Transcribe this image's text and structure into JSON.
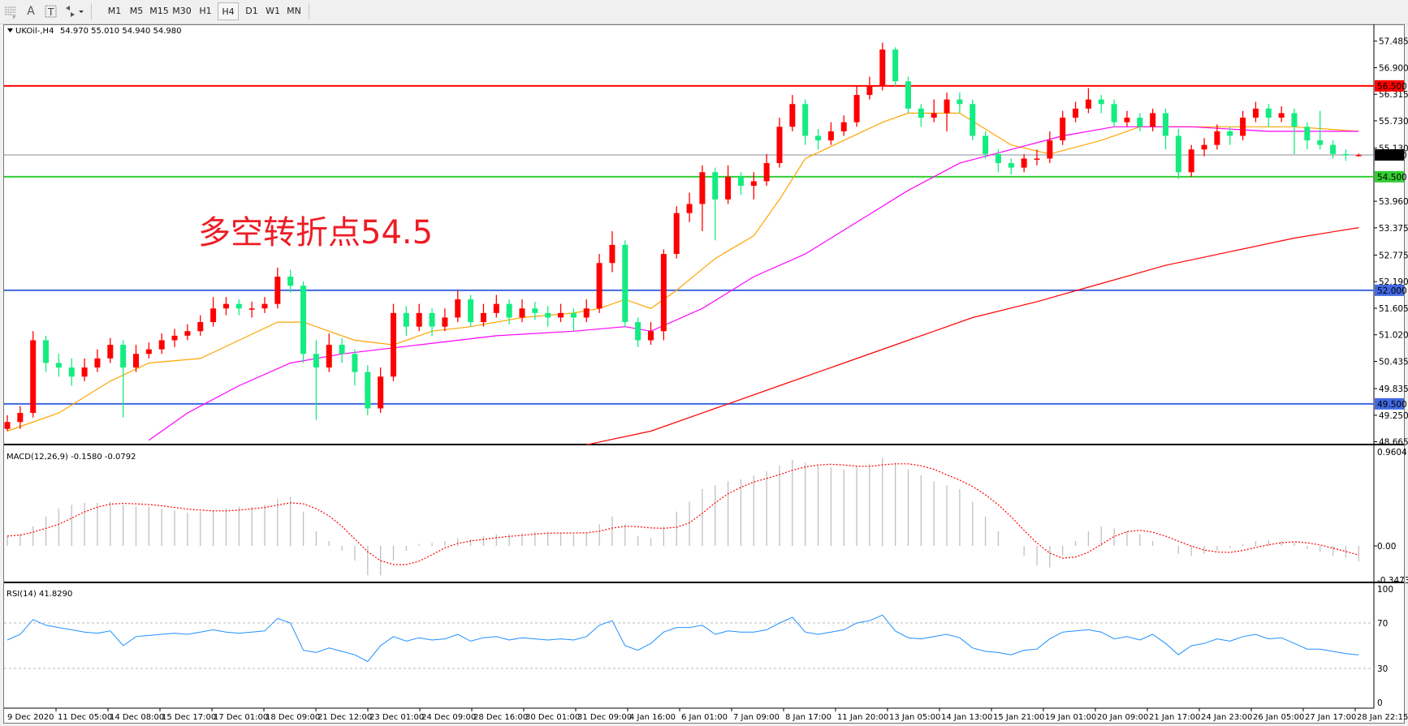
{
  "toolbar": {
    "icons": [
      "grid-f-icon",
      "text-a-icon",
      "text-label-icon",
      "arrows-icon"
    ],
    "timeframes": [
      "M1",
      "M5",
      "M15",
      "M30",
      "H1",
      "H4",
      "D1",
      "W1",
      "MN"
    ],
    "selected_timeframe": "H4"
  },
  "chart_header": {
    "symbol": "UKOil-,H4",
    "ohlc": "54.970 55.010 54.940 54.980"
  },
  "annotation": "多空转折点54.5",
  "macd": {
    "label": "MACD(12,26,9) -0.1580 -0.0792",
    "axis_labels": [
      "0.9604",
      "0.00",
      "-0.3473"
    ]
  },
  "rsi": {
    "label": "RSI(14) 41.8290",
    "axis_labels": [
      "100",
      "70",
      "30",
      "0"
    ],
    "levels": [
      70,
      30
    ]
  },
  "colors": {
    "bull": "#ff0000",
    "bear": "#14ec82",
    "ma_fast": "#ffa500",
    "ma_mid": "#ff00ff",
    "ma_slow": "#ff0000",
    "macd_hist": "#c0c0c0",
    "macd_signal": "#ff0000",
    "rsi": "#1e90ff"
  },
  "chart_data": [
    {
      "type": "candlestick",
      "title": "UKOil-,H4",
      "ylim": [
        48.665,
        57.485
      ],
      "y_tick_labels": [
        "57.485",
        "56.900",
        "56.315",
        "55.730",
        "55.130",
        "53.960",
        "53.375",
        "52.775",
        "52.190",
        "51.605",
        "51.020",
        "50.435",
        "49.835",
        "49.250",
        "48.665"
      ],
      "x_tick_labels": [
        "9 Dec 2020",
        "11 Dec 05:00",
        "14 Dec 08:00",
        "15 Dec 17:00",
        "17 Dec 01:00",
        "18 Dec 09:00",
        "21 Dec 12:00",
        "23 Dec 01:00",
        "24 Dec 09:00",
        "28 Dec 16:00",
        "30 Dec 01:00",
        "31 Dec 09:00",
        "4 Jan 16:00",
        "6 Jan 01:00",
        "7 Jan 09:00",
        "8 Jan 17:00",
        "11 Jan 20:00",
        "13 Jan 05:00",
        "14 Jan 13:00",
        "15 Jan 21:00",
        "19 Jan 01:00",
        "20 Jan 09:00",
        "21 Jan 17:00",
        "24 Jan 23:00",
        "26 Jan 05:00",
        "27 Jan 17:00",
        "28 Jan 22:15"
      ],
      "horizontal_lines": [
        {
          "price": 56.5,
          "label": "56.500",
          "color": "#ff0000"
        },
        {
          "price": 54.98,
          "label": "54.980",
          "color": "#000000",
          "line_color": "#8a8f96"
        },
        {
          "price": 54.5,
          "label": "54.500",
          "color": "#32cd32"
        },
        {
          "price": 52.0,
          "label": "52.000",
          "color": "#4169e1"
        },
        {
          "price": 49.5,
          "label": "49.500",
          "color": "#4169e1"
        }
      ],
      "candles_ohlc": [
        [
          48.95,
          49.25,
          48.9,
          49.1
        ],
        [
          49.1,
          49.45,
          48.95,
          49.3
        ],
        [
          49.3,
          51.1,
          49.2,
          50.9
        ],
        [
          50.9,
          51.0,
          50.2,
          50.4
        ],
        [
          50.4,
          50.6,
          50.1,
          50.3
        ],
        [
          50.3,
          50.5,
          49.9,
          50.1
        ],
        [
          50.1,
          50.5,
          50.0,
          50.3
        ],
        [
          50.3,
          50.7,
          50.2,
          50.5
        ],
        [
          50.5,
          50.95,
          50.4,
          50.8
        ],
        [
          50.8,
          50.9,
          49.2,
          50.3
        ],
        [
          50.3,
          50.8,
          50.2,
          50.6
        ],
        [
          50.6,
          50.85,
          50.5,
          50.7
        ],
        [
          50.7,
          51.05,
          50.6,
          50.9
        ],
        [
          50.9,
          51.15,
          50.75,
          51.0
        ],
        [
          51.0,
          51.25,
          50.9,
          51.1
        ],
        [
          51.1,
          51.45,
          51.0,
          51.3
        ],
        [
          51.3,
          51.85,
          51.2,
          51.6
        ],
        [
          51.6,
          51.85,
          51.45,
          51.7
        ],
        [
          51.7,
          51.8,
          51.45,
          51.6
        ],
        [
          51.6,
          51.75,
          51.4,
          51.6
        ],
        [
          51.6,
          51.85,
          51.5,
          51.7
        ],
        [
          51.7,
          52.5,
          51.6,
          52.3
        ],
        [
          52.3,
          52.45,
          51.95,
          52.1
        ],
        [
          52.1,
          52.2,
          50.4,
          50.6
        ],
        [
          50.6,
          50.9,
          49.15,
          50.3
        ],
        [
          50.3,
          51.05,
          50.2,
          50.8
        ],
        [
          50.8,
          50.95,
          50.4,
          50.6
        ],
        [
          50.6,
          50.7,
          49.9,
          50.2
        ],
        [
          50.2,
          50.35,
          49.25,
          49.4
        ],
        [
          49.4,
          50.3,
          49.3,
          50.1
        ],
        [
          50.1,
          51.7,
          50.0,
          51.5
        ],
        [
          51.5,
          51.65,
          51.0,
          51.2
        ],
        [
          51.2,
          51.7,
          51.1,
          51.5
        ],
        [
          51.5,
          51.6,
          51.0,
          51.2
        ],
        [
          51.2,
          51.6,
          51.1,
          51.4
        ],
        [
          51.4,
          52.0,
          51.3,
          51.8
        ],
        [
          51.8,
          51.9,
          51.2,
          51.3
        ],
        [
          51.3,
          51.7,
          51.2,
          51.5
        ],
        [
          51.5,
          51.9,
          51.4,
          51.7
        ],
        [
          51.7,
          51.8,
          51.25,
          51.4
        ],
        [
          51.4,
          51.8,
          51.3,
          51.6
        ],
        [
          51.6,
          51.75,
          51.35,
          51.5
        ],
        [
          51.5,
          51.65,
          51.2,
          51.4
        ],
        [
          51.4,
          51.7,
          51.3,
          51.5
        ],
        [
          51.5,
          51.6,
          51.1,
          51.4
        ],
        [
          51.4,
          51.8,
          51.3,
          51.6
        ],
        [
          51.6,
          52.8,
          51.5,
          52.6
        ],
        [
          52.6,
          53.3,
          52.4,
          53.0
        ],
        [
          53.0,
          53.1,
          51.2,
          51.3
        ],
        [
          51.3,
          51.4,
          50.75,
          50.9
        ],
        [
          50.9,
          51.3,
          50.8,
          51.1
        ],
        [
          51.1,
          52.9,
          50.9,
          52.8
        ],
        [
          52.8,
          53.85,
          52.7,
          53.7
        ],
        [
          53.7,
          54.15,
          53.5,
          53.9
        ],
        [
          53.9,
          54.75,
          53.3,
          54.6
        ],
        [
          54.6,
          54.7,
          53.1,
          54.0
        ],
        [
          54.0,
          54.75,
          53.9,
          54.5
        ],
        [
          54.5,
          54.6,
          54.1,
          54.3
        ],
        [
          54.3,
          54.6,
          54.0,
          54.4
        ],
        [
          54.4,
          55.0,
          54.3,
          54.8
        ],
        [
          54.8,
          55.8,
          54.7,
          55.6
        ],
        [
          55.6,
          56.3,
          55.5,
          56.1
        ],
        [
          56.1,
          56.2,
          55.2,
          55.4
        ],
        [
          55.4,
          55.55,
          55.1,
          55.3
        ],
        [
          55.3,
          55.7,
          55.2,
          55.5
        ],
        [
          55.5,
          55.85,
          55.4,
          55.7
        ],
        [
          55.7,
          56.5,
          55.6,
          56.3
        ],
        [
          56.3,
          56.7,
          56.2,
          56.5
        ],
        [
          56.5,
          57.45,
          56.4,
          57.3
        ],
        [
          57.3,
          57.35,
          56.5,
          56.6
        ],
        [
          56.6,
          56.7,
          55.9,
          56.0
        ],
        [
          56.0,
          56.1,
          55.6,
          55.8
        ],
        [
          55.8,
          56.2,
          55.7,
          55.9
        ],
        [
          55.9,
          56.35,
          55.5,
          56.2
        ],
        [
          56.2,
          56.35,
          55.9,
          56.1
        ],
        [
          56.1,
          56.2,
          55.3,
          55.4
        ],
        [
          55.4,
          55.5,
          54.9,
          55.0
        ],
        [
          55.0,
          55.1,
          54.6,
          54.8
        ],
        [
          54.8,
          54.9,
          54.55,
          54.7
        ],
        [
          54.7,
          55.0,
          54.6,
          54.9
        ],
        [
          54.9,
          55.1,
          54.75,
          54.9
        ],
        [
          54.9,
          55.5,
          54.8,
          55.3
        ],
        [
          55.3,
          55.95,
          55.2,
          55.8
        ],
        [
          55.8,
          56.15,
          55.7,
          56.0
        ],
        [
          56.0,
          56.45,
          55.9,
          56.2
        ],
        [
          56.2,
          56.3,
          55.9,
          56.1
        ],
        [
          56.1,
          56.2,
          55.6,
          55.7
        ],
        [
          55.7,
          55.95,
          55.6,
          55.8
        ],
        [
          55.8,
          55.9,
          55.5,
          55.6
        ],
        [
          55.6,
          56.0,
          55.5,
          55.9
        ],
        [
          55.9,
          56.0,
          55.1,
          55.4
        ],
        [
          55.4,
          55.55,
          54.45,
          54.6
        ],
        [
          54.6,
          55.2,
          54.5,
          55.1
        ],
        [
          55.1,
          55.35,
          54.95,
          55.2
        ],
        [
          55.2,
          55.65,
          55.1,
          55.5
        ],
        [
          55.5,
          55.6,
          55.2,
          55.4
        ],
        [
          55.4,
          55.95,
          55.3,
          55.8
        ],
        [
          55.8,
          56.15,
          55.7,
          56.0
        ],
        [
          56.0,
          56.1,
          55.6,
          55.8
        ],
        [
          55.8,
          56.05,
          55.7,
          55.9
        ],
        [
          55.9,
          56.0,
          55.0,
          55.6
        ],
        [
          55.6,
          55.7,
          55.1,
          55.3
        ],
        [
          55.3,
          55.95,
          55.1,
          55.2
        ],
        [
          55.2,
          55.3,
          54.9,
          55.0
        ],
        [
          55.0,
          55.1,
          54.85,
          54.97
        ],
        [
          54.97,
          55.01,
          54.94,
          54.98
        ]
      ],
      "moving_averages": [
        {
          "color": "#ffa500",
          "points": [
            [
              0,
              48.9
            ],
            [
              4,
              49.3
            ],
            [
              8,
              50.0
            ],
            [
              11,
              50.4
            ],
            [
              15,
              50.5
            ],
            [
              18,
              50.9
            ],
            [
              21,
              51.3
            ],
            [
              23,
              51.3
            ],
            [
              27,
              50.9
            ],
            [
              30,
              50.8
            ],
            [
              33,
              51.1
            ],
            [
              36,
              51.2
            ],
            [
              40,
              51.4
            ],
            [
              44,
              51.5
            ],
            [
              46,
              51.6
            ],
            [
              48,
              51.8
            ],
            [
              50,
              51.6
            ],
            [
              52,
              52.0
            ],
            [
              55,
              52.7
            ],
            [
              58,
              53.2
            ],
            [
              60,
              54.0
            ],
            [
              62,
              54.9
            ],
            [
              65,
              55.3
            ],
            [
              68,
              55.7
            ],
            [
              70,
              55.9
            ],
            [
              74,
              55.9
            ],
            [
              78,
              55.2
            ],
            [
              81,
              55.0
            ],
            [
              85,
              55.3
            ],
            [
              88,
              55.6
            ],
            [
              93,
              55.6
            ],
            [
              96,
              55.6
            ],
            [
              100,
              55.6
            ],
            [
              105,
              55.5
            ]
          ]
        },
        {
          "color": "#ff00ff",
          "points": [
            [
              11,
              48.7
            ],
            [
              14,
              49.3
            ],
            [
              18,
              49.9
            ],
            [
              22,
              50.4
            ],
            [
              26,
              50.6
            ],
            [
              32,
              50.8
            ],
            [
              38,
              51.0
            ],
            [
              44,
              51.1
            ],
            [
              48,
              51.2
            ],
            [
              50,
              51.1
            ],
            [
              54,
              51.6
            ],
            [
              58,
              52.3
            ],
            [
              62,
              52.8
            ],
            [
              66,
              53.5
            ],
            [
              70,
              54.2
            ],
            [
              74,
              54.8
            ],
            [
              78,
              55.1
            ],
            [
              82,
              55.4
            ],
            [
              86,
              55.6
            ],
            [
              92,
              55.6
            ],
            [
              98,
              55.5
            ],
            [
              105,
              55.5
            ]
          ]
        },
        {
          "color": "#ff0000",
          "points": [
            [
              45,
              48.6
            ],
            [
              50,
              48.9
            ],
            [
              55,
              49.4
            ],
            [
              60,
              49.9
            ],
            [
              65,
              50.4
            ],
            [
              70,
              50.9
            ],
            [
              75,
              51.4
            ],
            [
              80,
              51.75
            ],
            [
              85,
              52.15
            ],
            [
              90,
              52.55
            ],
            [
              95,
              52.85
            ],
            [
              100,
              53.15
            ],
            [
              105,
              53.38
            ]
          ]
        }
      ]
    },
    {
      "type": "bar",
      "title": "MACD(12,26,9)",
      "ylim": [
        -0.3473,
        0.9604
      ],
      "values": [
        0.1,
        0.12,
        0.2,
        0.3,
        0.38,
        0.42,
        0.44,
        0.44,
        0.45,
        0.42,
        0.4,
        0.4,
        0.38,
        0.36,
        0.34,
        0.35,
        0.36,
        0.38,
        0.4,
        0.4,
        0.42,
        0.48,
        0.5,
        0.35,
        0.15,
        0.05,
        -0.05,
        -0.15,
        -0.3,
        -0.3,
        -0.15,
        -0.05,
        0.02,
        0.03,
        0.05,
        0.08,
        0.07,
        0.1,
        0.12,
        0.12,
        0.13,
        0.14,
        0.14,
        0.13,
        0.12,
        0.14,
        0.22,
        0.3,
        0.22,
        0.1,
        0.08,
        0.2,
        0.35,
        0.45,
        0.58,
        0.62,
        0.66,
        0.68,
        0.72,
        0.76,
        0.82,
        0.88,
        0.85,
        0.82,
        0.8,
        0.78,
        0.82,
        0.84,
        0.9,
        0.85,
        0.78,
        0.72,
        0.66,
        0.62,
        0.58,
        0.45,
        0.3,
        0.15,
        0.0,
        -0.1,
        -0.2,
        -0.22,
        -0.1,
        0.05,
        0.15,
        0.2,
        0.18,
        0.15,
        0.12,
        0.05,
        0.0,
        -0.08,
        -0.1,
        -0.08,
        -0.05,
        -0.02,
        0.02,
        0.05,
        0.06,
        0.05,
        0.03,
        -0.03,
        -0.06,
        -0.1,
        -0.12,
        -0.158
      ]
    },
    {
      "type": "line",
      "title": "RSI(14)",
      "ylim": [
        0,
        100
      ],
      "values": [
        55,
        60,
        73,
        68,
        66,
        64,
        62,
        61,
        63,
        50,
        58,
        59,
        60,
        61,
        60,
        62,
        64,
        62,
        61,
        62,
        63,
        74,
        70,
        46,
        44,
        48,
        45,
        42,
        36,
        50,
        58,
        54,
        57,
        55,
        56,
        60,
        54,
        57,
        58,
        55,
        57,
        56,
        55,
        56,
        55,
        58,
        68,
        72,
        50,
        46,
        52,
        62,
        66,
        66,
        68,
        60,
        63,
        62,
        62,
        64,
        70,
        75,
        62,
        60,
        62,
        64,
        70,
        72,
        77,
        63,
        57,
        56,
        58,
        60,
        57,
        48,
        45,
        44,
        42,
        46,
        47,
        56,
        62,
        63,
        64,
        62,
        56,
        58,
        55,
        60,
        52,
        42,
        50,
        52,
        56,
        54,
        58,
        60,
        56,
        57,
        52,
        47,
        47,
        45,
        43,
        41.83
      ]
    }
  ]
}
